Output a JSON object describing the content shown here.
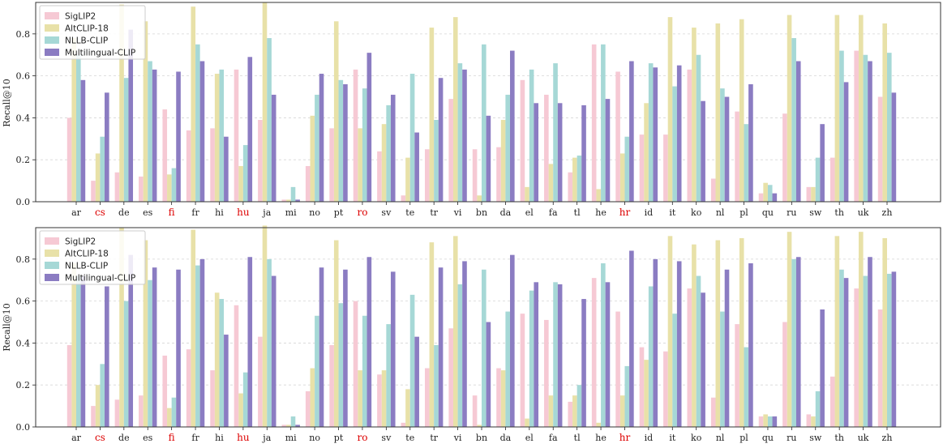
{
  "colors": {
    "SigLIP2": "#f6c9d4",
    "AltCLIP-18": "#e8e1a8",
    "NLLB-CLIP": "#a6d8d6",
    "Multilingual-CLIP": "#8b7cc2",
    "highlight_label": "#dd0000",
    "normal_label": "#222222"
  },
  "highlighted_languages": [
    "cs",
    "fi",
    "hu",
    "ro",
    "hr"
  ],
  "chart_data": [
    {
      "type": "bar",
      "ylabel": "Recall@10",
      "ylim": [
        0,
        0.95
      ],
      "yticks": [
        "0.0",
        "0.2",
        "0.4",
        "0.6",
        "0.8"
      ],
      "grid": "horizontal dashed",
      "legend_position": "top-left",
      "categories": [
        "ar",
        "cs",
        "de",
        "es",
        "fi",
        "fr",
        "hi",
        "hu",
        "ja",
        "mi",
        "no",
        "pt",
        "ro",
        "sv",
        "te",
        "tr",
        "vi",
        "bn",
        "da",
        "el",
        "fa",
        "tl",
        "he",
        "hr",
        "id",
        "it",
        "ko",
        "nl",
        "pl",
        "qu",
        "ru",
        "sw",
        "th",
        "uk",
        "zh"
      ],
      "series": [
        {
          "name": "SigLIP2",
          "values": [
            0.4,
            0.1,
            0.14,
            0.12,
            0.44,
            0.34,
            0.35,
            0.63,
            0.39,
            0.01,
            0.17,
            0.35,
            0.63,
            0.24,
            0.03,
            0.25,
            0.49,
            0.25,
            0.26,
            0.58,
            0.51,
            0.14,
            0.75,
            0.62,
            0.32,
            0.32,
            0.63,
            0.11,
            0.43,
            0.04,
            0.42,
            0.07,
            0.21,
            0.72,
            0.5
          ]
        },
        {
          "name": "AltCLIP-18",
          "values": [
            0.78,
            0.23,
            0.94,
            0.86,
            0.13,
            0.93,
            0.61,
            0.17,
            0.95,
            0.01,
            0.41,
            0.86,
            0.35,
            0.37,
            0.21,
            0.83,
            0.88,
            0.03,
            0.39,
            0.07,
            0.18,
            0.21,
            0.06,
            0.23,
            0.47,
            0.88,
            0.83,
            0.85,
            0.87,
            0.09,
            0.89,
            0.07,
            0.89,
            0.89,
            0.85
          ]
        },
        {
          "name": "NLLB-CLIP",
          "values": [
            0.7,
            0.31,
            0.59,
            0.67,
            0.16,
            0.75,
            0.63,
            0.27,
            0.78,
            0.07,
            0.51,
            0.58,
            0.54,
            0.46,
            0.61,
            0.39,
            0.66,
            0.75,
            0.51,
            0.63,
            0.66,
            0.22,
            0.75,
            0.31,
            0.66,
            0.55,
            0.7,
            0.54,
            0.37,
            0.08,
            0.78,
            0.21,
            0.72,
            0.7,
            0.71
          ]
        },
        {
          "name": "Multilingual-CLIP",
          "values": [
            0.58,
            0.52,
            0.82,
            0.63,
            0.62,
            0.67,
            0.31,
            0.69,
            0.51,
            0.01,
            0.61,
            0.56,
            0.71,
            0.51,
            0.33,
            0.59,
            0.63,
            0.41,
            0.72,
            0.47,
            0.47,
            0.46,
            0.49,
            0.67,
            0.64,
            0.65,
            0.48,
            0.5,
            0.56,
            0.04,
            0.67,
            0.37,
            0.57,
            0.67,
            0.52
          ]
        }
      ]
    },
    {
      "type": "bar",
      "ylabel": "Recall@10",
      "ylim": [
        0,
        0.95
      ],
      "yticks": [
        "0.0",
        "0.2",
        "0.4",
        "0.6",
        "0.8"
      ],
      "grid": "horizontal dashed",
      "legend_position": "top-left",
      "categories": [
        "ar",
        "cs",
        "de",
        "es",
        "fi",
        "fr",
        "hi",
        "hu",
        "ja",
        "mi",
        "no",
        "pt",
        "ro",
        "sv",
        "te",
        "tr",
        "vi",
        "bn",
        "da",
        "el",
        "fa",
        "tl",
        "he",
        "hr",
        "id",
        "it",
        "ko",
        "nl",
        "pl",
        "qu",
        "ru",
        "sw",
        "th",
        "uk",
        "zh"
      ],
      "series": [
        {
          "name": "SigLIP2",
          "values": [
            0.39,
            0.1,
            0.13,
            0.15,
            0.34,
            0.37,
            0.27,
            0.58,
            0.43,
            0.01,
            0.17,
            0.39,
            0.6,
            0.25,
            0.02,
            0.28,
            0.47,
            0.15,
            0.28,
            0.54,
            0.51,
            0.12,
            0.71,
            0.55,
            0.38,
            0.36,
            0.66,
            0.14,
            0.49,
            0.05,
            0.5,
            0.06,
            0.24,
            0.66,
            0.56
          ]
        },
        {
          "name": "AltCLIP-18",
          "values": [
            0.78,
            0.2,
            0.95,
            0.89,
            0.09,
            0.94,
            0.64,
            0.16,
            0.96,
            0.01,
            0.28,
            0.89,
            0.27,
            0.27,
            0.18,
            0.88,
            0.91,
            0.01,
            0.27,
            0.04,
            0.15,
            0.15,
            0.02,
            0.15,
            0.32,
            0.91,
            0.87,
            0.89,
            0.9,
            0.06,
            0.93,
            0.05,
            0.91,
            0.93,
            0.9
          ]
        },
        {
          "name": "NLLB-CLIP",
          "values": [
            0.72,
            0.3,
            0.6,
            0.7,
            0.14,
            0.77,
            0.61,
            0.26,
            0.8,
            0.05,
            0.53,
            0.59,
            0.53,
            0.49,
            0.63,
            0.39,
            0.68,
            0.75,
            0.55,
            0.65,
            0.69,
            0.2,
            0.78,
            0.29,
            0.67,
            0.54,
            0.72,
            0.55,
            0.38,
            0.05,
            0.8,
            0.17,
            0.75,
            0.72,
            0.73
          ]
        },
        {
          "name": "Multilingual-CLIP",
          "values": [
            0.72,
            0.67,
            0.82,
            0.76,
            0.75,
            0.8,
            0.44,
            0.81,
            0.72,
            0.01,
            0.76,
            0.75,
            0.81,
            0.74,
            0.43,
            0.76,
            0.79,
            0.5,
            0.82,
            0.69,
            0.68,
            0.61,
            0.69,
            0.84,
            0.8,
            0.79,
            0.64,
            0.75,
            0.78,
            0.05,
            0.81,
            0.56,
            0.71,
            0.81,
            0.74
          ]
        }
      ]
    }
  ]
}
